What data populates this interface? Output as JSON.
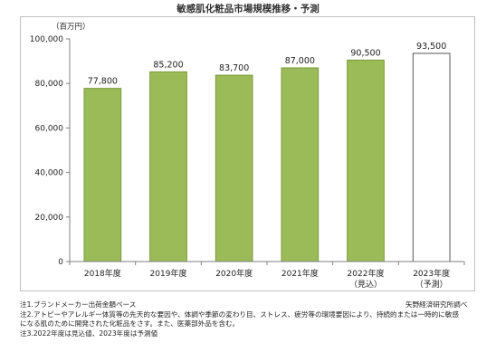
{
  "chart_data": {
    "type": "bar",
    "title": "敏感肌化粧品市場規模推移・予測",
    "unit_label": "（百万円）",
    "categories": [
      "2018年度",
      "2019年度",
      "2020年度",
      "2021年度",
      "2022年度",
      "2023年度"
    ],
    "sub_labels": [
      "",
      "",
      "",
      "",
      "（見込）",
      "（予測）"
    ],
    "values": [
      77800,
      85200,
      83700,
      87000,
      90500,
      93500
    ],
    "value_labels": [
      "77,800",
      "85,200",
      "83,700",
      "87,000",
      "90,500",
      "93,500"
    ],
    "ylim": [
      0,
      100000
    ],
    "yticks": [
      0,
      20000,
      40000,
      60000,
      80000,
      100000
    ],
    "ytick_labels": [
      "0",
      "20,000",
      "40,000",
      "60,000",
      "80,000",
      "100,000"
    ],
    "bar_styles": [
      "actual",
      "actual",
      "actual",
      "actual",
      "actual",
      "forecast"
    ],
    "colors": {
      "actual_fill": "#9bbb59",
      "actual_stroke": "#7a9a3a",
      "forecast_fill": "#ffffff",
      "forecast_stroke": "#555555"
    },
    "grid": false
  },
  "notes": [
    "注1.ブランドメーカー出荷金額ベース",
    "注2.アトピーやアレルギー体質等の先天的な要因や、体調や季節の変わり目、ストレス、疲労等の環境要因により、持続的または一時的に敏感",
    "になる肌のために開発された化粧品をさす。また、医薬部外品を含む。",
    "注3.2022年度は見込値、2023年度は予測値"
  ],
  "source": "矢野経済研究所調べ"
}
